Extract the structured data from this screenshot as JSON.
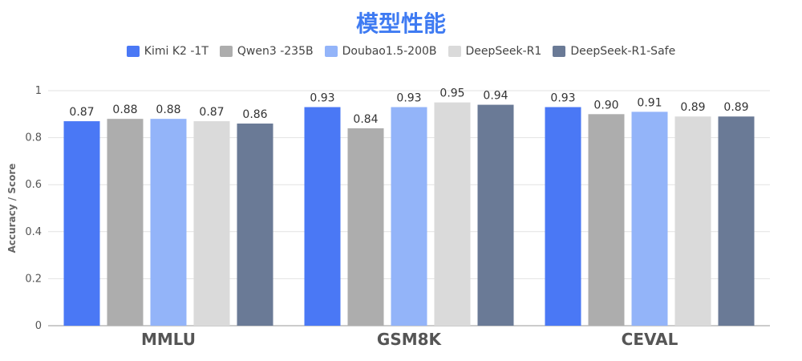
{
  "chart_data": {
    "type": "bar",
    "title": "模型性能",
    "ylabel": "Accuracy / Score",
    "xlabel": "",
    "ylim": [
      0,
      1
    ],
    "yticks": [
      "0",
      "0.2",
      "0.4",
      "0.6",
      "0.8",
      "1"
    ],
    "grid": true,
    "legend_position": "top",
    "categories": [
      "MMLU",
      "GSM8K",
      "CEVAL"
    ],
    "series": [
      {
        "name": "Kimi K2 -1T",
        "color": "#4a78f5",
        "values": [
          0.87,
          0.93,
          0.93
        ]
      },
      {
        "name": "Qwen3 -235B",
        "color": "#adadad",
        "values": [
          0.88,
          0.84,
          0.9
        ]
      },
      {
        "name": "Doubao1.5-200B",
        "color": "#93b4f9",
        "values": [
          0.88,
          0.93,
          0.91
        ]
      },
      {
        "name": "DeepSeek-R1",
        "color": "#dadada",
        "values": [
          0.87,
          0.95,
          0.89
        ]
      },
      {
        "name": "DeepSeek-R1-Safe",
        "color": "#6a7a96",
        "values": [
          0.86,
          0.94,
          0.89
        ]
      }
    ]
  }
}
